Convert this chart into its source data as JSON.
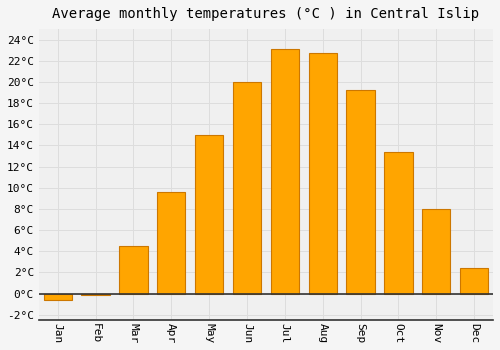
{
  "title": "Average monthly temperatures (°C ) in Central Islip",
  "months": [
    "Jan",
    "Feb",
    "Mar",
    "Apr",
    "May",
    "Jun",
    "Jul",
    "Aug",
    "Sep",
    "Oct",
    "Nov",
    "Dec"
  ],
  "values": [
    -0.6,
    -0.1,
    4.5,
    9.6,
    15.0,
    20.0,
    23.1,
    22.7,
    19.2,
    13.4,
    8.0,
    2.4
  ],
  "bar_color": "#FFA500",
  "bar_edge_color": "#cc7700",
  "background_color": "#f5f5f5",
  "plot_bg_color": "#f0f0f0",
  "grid_color": "#dddddd",
  "ylim": [
    -2.5,
    25
  ],
  "yticks": [
    -2,
    0,
    2,
    4,
    6,
    8,
    10,
    12,
    14,
    16,
    18,
    20,
    22,
    24
  ],
  "title_fontsize": 10,
  "tick_fontsize": 8,
  "font_family": "monospace"
}
